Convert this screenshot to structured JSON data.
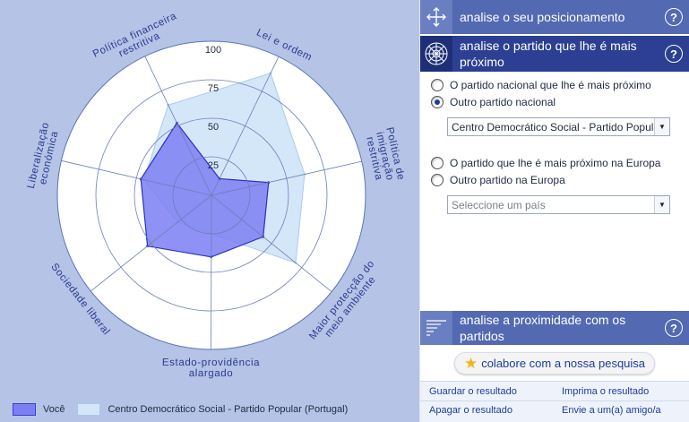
{
  "chart_data": {
    "type": "radar",
    "rmax": 100,
    "tick_labels": [
      "25",
      "50",
      "75",
      "100"
    ],
    "tick_values": [
      25,
      50,
      75,
      100
    ],
    "axes": [
      "Liberalização económica",
      "Política financeira restritiva",
      "Lei e ordem",
      "Política de imigração restritiva",
      "Maior protecção do meio ambiente",
      "Estado-providência alargado",
      "Sociedade liberal"
    ],
    "series": [
      {
        "name": "Você",
        "values": [
          47,
          52,
          12,
          38,
          43,
          40,
          53
        ],
        "color": "#7b7ff2"
      },
      {
        "name": "Centro Democrático Social - Partido Popular (Portugal)",
        "values": [
          45,
          65,
          88,
          62,
          70,
          25,
          28
        ],
        "color": "#cfe4f7"
      }
    ]
  },
  "legend": {
    "you_label": "Você",
    "party_label": "Centro Democrático Social - Partido Popular (Portugal)"
  },
  "side": {
    "bar1_title": "analise o seu posicionamento",
    "bar2_title": "analise o partido que lhe é mais próximo",
    "bar3_title": "analise a proximidade com os partidos",
    "help": "?",
    "radio_national_closest": "O partido nacional que lhe é mais próximo",
    "radio_national_other": "Outro partido nacional",
    "national_select_value": "Centro Democrático Social - Partido Popular (Portugal)",
    "radio_europe_closest": "O partido que lhe é mais próximo na Europa",
    "radio_europe_other": "Outro partido na Europa",
    "country_select_placeholder": "Seleccione um país",
    "collaborate_label": "colabore com a nossa pesquisa",
    "link_save": "Guardar o resultado",
    "link_print": "Imprima o resultado",
    "link_delete": "Apagar o resultado",
    "link_send": "Envie a um(a) amigo/a"
  },
  "colors": {
    "panel_bg": "#b4c3e6",
    "accent_dark": "#2c3f92",
    "accent": "#5369b2",
    "link": "#1c3c9c"
  }
}
